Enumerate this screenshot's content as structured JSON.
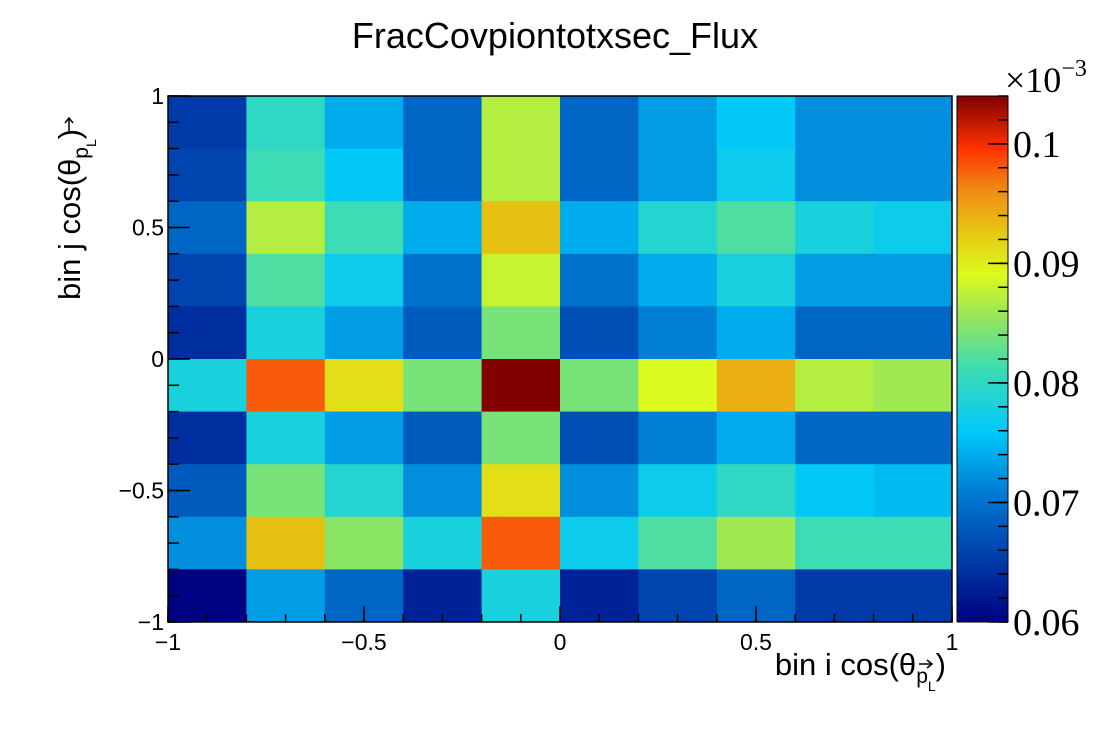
{
  "chart_data": {
    "type": "heatmap",
    "title": "FracCovpiontotxsec_Flux",
    "xlabel": "bin i cos(θ",
    "xlabel_sub": "p",
    "xlabel_subsub": "L",
    "xlabel_close": ")",
    "ylabel": "bin j cos(θ",
    "ylabel_sub": "p",
    "ylabel_subsub": "L",
    "ylabel_close": ")",
    "xlim": [
      -1,
      1
    ],
    "ylim": [
      -1,
      1
    ],
    "x_ticks": [
      {
        "value": -1,
        "label": "−1"
      },
      {
        "value": -0.5,
        "label": "−0.5"
      },
      {
        "value": 0,
        "label": "0"
      },
      {
        "value": 0.5,
        "label": "0.5"
      },
      {
        "value": 1,
        "label": "1"
      }
    ],
    "y_ticks": [
      {
        "value": -1,
        "label": "−1"
      },
      {
        "value": -0.5,
        "label": "−0.5"
      },
      {
        "value": 0,
        "label": "0"
      },
      {
        "value": 0.5,
        "label": "0.5"
      },
      {
        "value": 1,
        "label": "1"
      }
    ],
    "colorbar": {
      "zlim": [
        0.06,
        0.104
      ],
      "exponent_base": "×10",
      "exponent_power": "−3",
      "ticks": [
        {
          "value": 0.06,
          "label": "0.06"
        },
        {
          "value": 0.07,
          "label": "0.07"
        },
        {
          "value": 0.08,
          "label": "0.08"
        },
        {
          "value": 0.09,
          "label": "0.09"
        },
        {
          "value": 0.1,
          "label": "0.1"
        }
      ]
    },
    "x_bin_edges": [
      -1,
      -0.8,
      -0.6,
      -0.4,
      -0.2,
      0,
      0.2,
      0.4,
      0.6,
      0.8,
      1
    ],
    "y_bin_edges": [
      -1,
      -0.8,
      -0.6,
      -0.4,
      -0.2,
      0,
      0.2,
      0.4,
      0.6,
      0.8,
      1
    ],
    "z_rows_top_to_bottom": [
      [
        0.065,
        0.08,
        0.074,
        0.069,
        0.087,
        0.069,
        0.073,
        0.076,
        0.072,
        0.072
      ],
      [
        0.066,
        0.081,
        0.076,
        0.069,
        0.087,
        0.069,
        0.073,
        0.077,
        0.072,
        0.072
      ],
      [
        0.069,
        0.087,
        0.081,
        0.074,
        0.093,
        0.074,
        0.079,
        0.082,
        0.078,
        0.077
      ],
      [
        0.066,
        0.082,
        0.077,
        0.07,
        0.088,
        0.07,
        0.074,
        0.078,
        0.073,
        0.073
      ],
      [
        0.064,
        0.078,
        0.073,
        0.068,
        0.084,
        0.067,
        0.071,
        0.074,
        0.069,
        0.069
      ],
      [
        0.078,
        0.098,
        0.091,
        0.084,
        0.104,
        0.084,
        0.089,
        0.094,
        0.087,
        0.086
      ],
      [
        0.064,
        0.078,
        0.073,
        0.068,
        0.084,
        0.067,
        0.071,
        0.074,
        0.069,
        0.069
      ],
      [
        0.068,
        0.084,
        0.079,
        0.072,
        0.091,
        0.072,
        0.077,
        0.08,
        0.076,
        0.075
      ],
      [
        0.072,
        0.093,
        0.085,
        0.078,
        0.098,
        0.077,
        0.082,
        0.086,
        0.081,
        0.081
      ],
      [
        0.06,
        0.073,
        0.069,
        0.063,
        0.078,
        0.063,
        0.066,
        0.069,
        0.065,
        0.065
      ]
    ]
  }
}
